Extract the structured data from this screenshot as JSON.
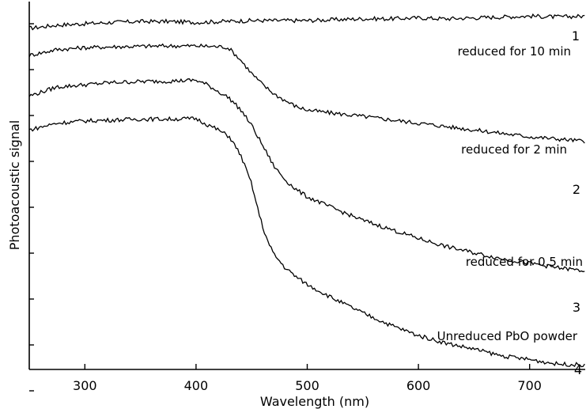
{
  "chart_data": {
    "type": "line",
    "xlabel": "Wavelength (nm)",
    "ylabel": "Photoacoustic signal",
    "xlim": [
      250,
      750
    ],
    "xticks": [
      300,
      400,
      500,
      600,
      700
    ],
    "y_tick_labels_shown": false,
    "y_tick_count": 9,
    "grid": false,
    "series": [
      {
        "name": "reduced for 10 min",
        "number": "1",
        "x": [
          250,
          275,
          300,
          325,
          350,
          375,
          400,
          425,
          450,
          475,
          500,
          525,
          550,
          575,
          600,
          625,
          650,
          675,
          700,
          725,
          750
        ],
        "y": [
          7.55,
          7.62,
          7.65,
          7.68,
          7.7,
          7.7,
          7.68,
          7.7,
          7.72,
          7.72,
          7.72,
          7.74,
          7.76,
          7.76,
          7.78,
          7.76,
          7.78,
          7.8,
          7.82,
          7.8,
          7.82
        ]
      },
      {
        "name": "reduced for 2 min",
        "number": "2",
        "x": [
          250,
          275,
          300,
          325,
          350,
          375,
          400,
          425,
          430,
          440,
          450,
          460,
          470,
          480,
          490,
          500,
          520,
          550,
          600,
          650,
          700,
          750
        ],
        "y": [
          6.95,
          7.08,
          7.12,
          7.14,
          7.15,
          7.16,
          7.16,
          7.14,
          7.1,
          6.85,
          6.55,
          6.3,
          6.1,
          5.95,
          5.82,
          5.74,
          5.68,
          5.6,
          5.45,
          5.3,
          5.15,
          5.05
        ]
      },
      {
        "name": "reduced for 0.5 min",
        "number": "3",
        "x": [
          250,
          275,
          300,
          325,
          350,
          375,
          400,
          410,
          420,
          430,
          440,
          450,
          460,
          470,
          480,
          490,
          500,
          525,
          550,
          575,
          600,
          625,
          650,
          675,
          700,
          725,
          750
        ],
        "y": [
          6.05,
          6.25,
          6.3,
          6.35,
          6.37,
          6.38,
          6.4,
          6.3,
          6.15,
          6.0,
          5.75,
          5.4,
          4.95,
          4.5,
          4.2,
          3.98,
          3.82,
          3.55,
          3.3,
          3.1,
          2.9,
          2.72,
          2.58,
          2.45,
          2.35,
          2.25,
          2.18
        ]
      },
      {
        "name": "Unreduced PbO powder",
        "number": "4",
        "x": [
          250,
          275,
          300,
          325,
          350,
          375,
          400,
          410,
          420,
          430,
          440,
          450,
          455,
          460,
          465,
          470,
          480,
          490,
          500,
          525,
          550,
          575,
          600,
          625,
          650,
          675,
          700,
          725,
          750
        ],
        "y": [
          5.3,
          5.45,
          5.5,
          5.52,
          5.54,
          5.54,
          5.55,
          5.42,
          5.3,
          5.15,
          4.75,
          4.1,
          3.6,
          3.15,
          2.8,
          2.55,
          2.25,
          2.05,
          1.88,
          1.55,
          1.25,
          0.98,
          0.75,
          0.58,
          0.45,
          0.3,
          0.22,
          0.12,
          0.1
        ]
      }
    ]
  }
}
